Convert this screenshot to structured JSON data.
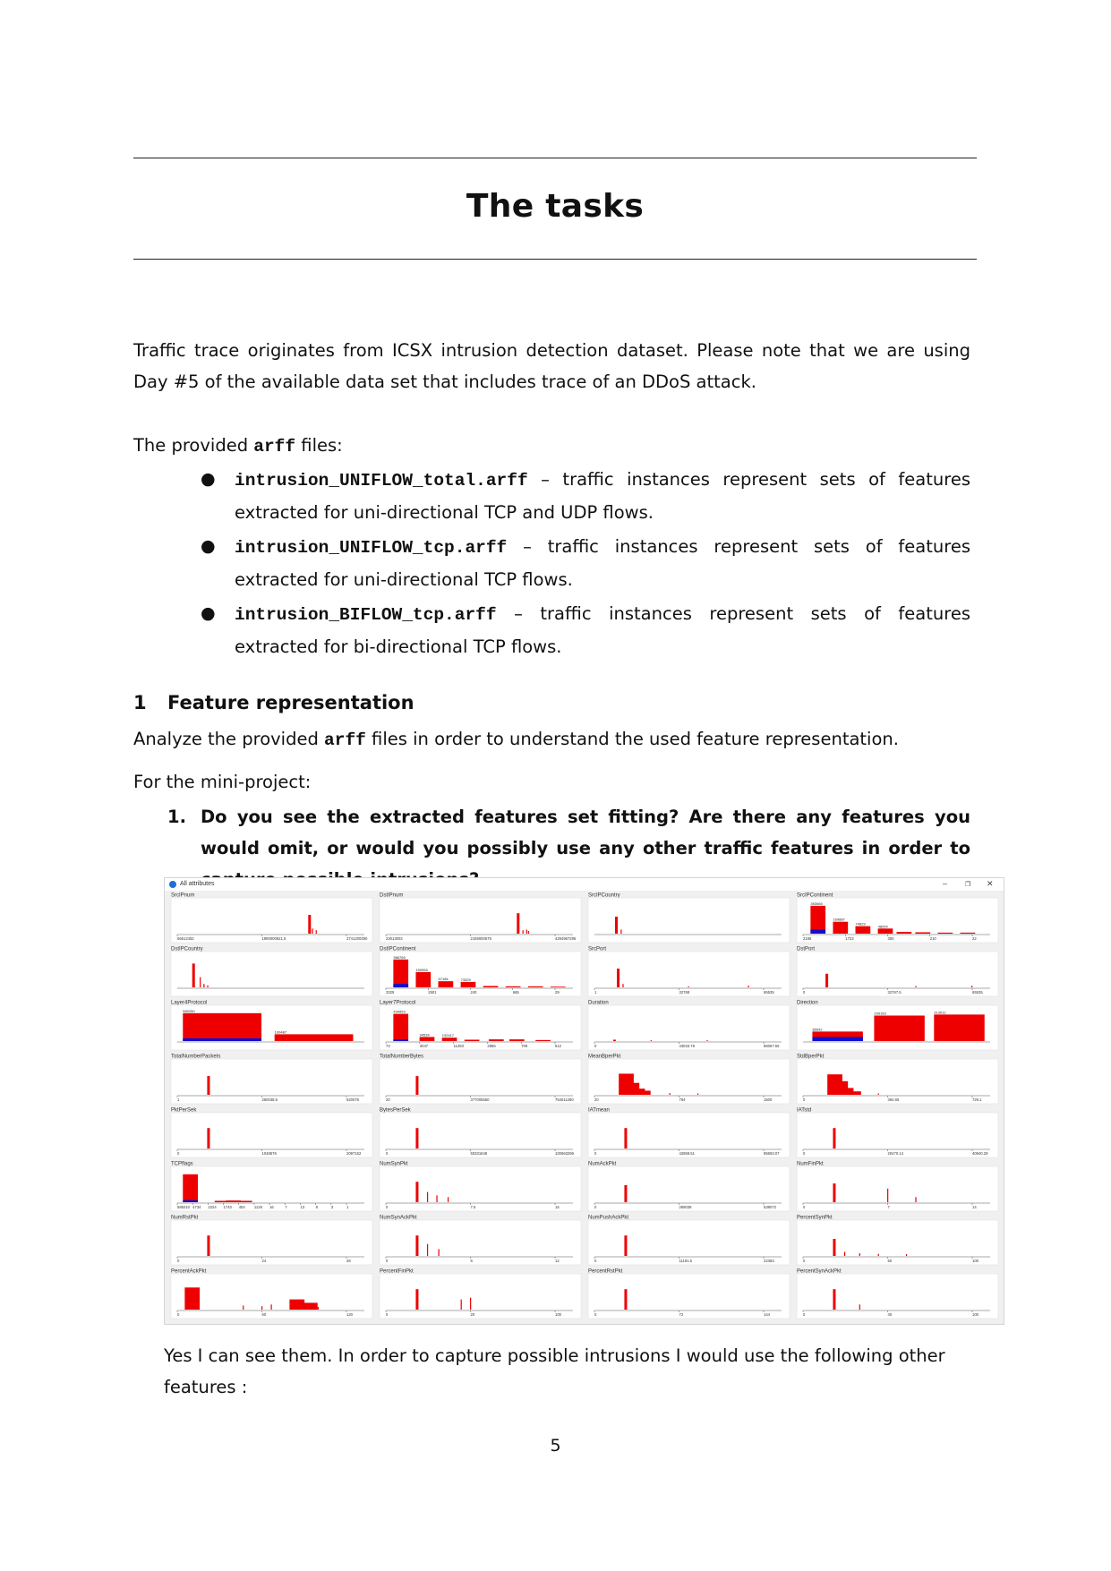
{
  "title": "The tasks",
  "intro": "Traffic trace originates from ICSX intrusion detection dataset. Please note that we are using Day #5 of the available data set that includes trace of an DDoS attack.",
  "provided": {
    "before": "The provided ",
    "code": "arff",
    "after": " files:"
  },
  "files": [
    {
      "name": "intrusion_UNIFLOW_total.arff",
      "desc": " – traffic instances represent sets of features extracted for uni-directional TCP and UDP flows."
    },
    {
      "name": "intrusion_UNIFLOW_tcp.arff",
      "desc": " – traffic instances represent sets of features extracted for uni-directional TCP flows."
    },
    {
      "name": "intrusion_BIFLOW_tcp.arff",
      "desc": " – traffic instances represent sets of features extracted for bi-directional TCP flows."
    }
  ],
  "section": {
    "number": "1",
    "title": "Feature representation"
  },
  "analyze": {
    "before": "Analyze the provided ",
    "code": "arff",
    "after": " files in order to understand the used feature representation."
  },
  "mini_project": "For the mini-project:",
  "question": {
    "number": "1.",
    "text": "Do you see the extracted features set fitting? Are there any features you would omit, or would you possibly use any other traffic features in order to capture possible intrusions?"
  },
  "screenshot": {
    "window_title": "All attributes",
    "colors": {
      "class_a": "#ee0000",
      "class_b": "#1010cc",
      "axis": "#555555",
      "panel_bg": "#ffffff"
    },
    "panels": [
      {
        "name": "SrcIPnum",
        "ticks": [
          "56612452",
          "1890000921.5",
          "3741200390"
        ],
        "bars": [
          [
            0.7,
            0.55
          ]
        ],
        "spikes": [
          [
            0.72,
            0.15
          ],
          [
            0.74,
            0.1
          ]
        ]
      },
      {
        "name": "DstIPnum",
        "ticks": [
          "23013003",
          "2159000679",
          "4294967295"
        ],
        "bars": [
          [
            0.7,
            0.6
          ]
        ],
        "spikes": [
          [
            0.73,
            0.1
          ],
          [
            0.75,
            0.12
          ],
          [
            0.76,
            0.08
          ]
        ]
      },
      {
        "name": "SrcIPCountry",
        "ticks": [],
        "bars": [
          [
            0.11,
            0.5
          ]
        ],
        "spikes": [
          [
            0.14,
            0.12
          ]
        ]
      },
      {
        "name": "SrcIPContinent",
        "ticks": [
          "2195",
          "1723",
          "350",
          "210",
          "22"
        ],
        "bars": [
          [
            0.04,
            0.82
          ],
          [
            0.16,
            0.35
          ],
          [
            0.28,
            0.22
          ],
          [
            0.4,
            0.15
          ],
          [
            0.5,
            0.05
          ],
          [
            0.6,
            0.04
          ],
          [
            0.72,
            0.03
          ],
          [
            0.84,
            0.03
          ]
        ],
        "counts": [
          "393065",
          "169887",
          "74623",
          "48254"
        ],
        "blue": 0.12
      },
      {
        "name": "DstIPCountry",
        "ticks": [],
        "bars": [
          [
            0.08,
            0.7
          ]
        ],
        "spikes": [
          [
            0.12,
            0.3
          ],
          [
            0.14,
            0.1
          ],
          [
            0.16,
            0.06
          ]
        ]
      },
      {
        "name": "DstIPContinent",
        "ticks": [
          "3325",
          "2501",
          "240",
          "665",
          "29"
        ],
        "bars": [
          [
            0.04,
            0.82
          ],
          [
            0.16,
            0.45
          ],
          [
            0.28,
            0.18
          ],
          [
            0.4,
            0.16
          ],
          [
            0.52,
            0.04
          ],
          [
            0.64,
            0.03
          ],
          [
            0.76,
            0.03
          ],
          [
            0.88,
            0.02
          ]
        ],
        "counts": [
          "366769",
          "159953",
          "57184",
          "73325"
        ],
        "blue": 0.1
      },
      {
        "name": "SrcPort",
        "ticks": [
          "1",
          "32768",
          "65535"
        ],
        "bars": [
          [
            0.12,
            0.55
          ]
        ],
        "spikes": [
          [
            0.15,
            0.1
          ],
          [
            0.5,
            0.03
          ],
          [
            0.82,
            0.05
          ]
        ]
      },
      {
        "name": "DstPort",
        "ticks": [
          "0",
          "32767.5",
          "65535"
        ],
        "bars": [
          [
            0.12,
            0.4
          ]
        ],
        "spikes": [
          [
            0.6,
            0.04
          ],
          [
            0.9,
            0.05
          ]
        ]
      },
      {
        "name": "Layer4Protocol",
        "ticks": [],
        "bars": [
          [
            0.03,
            0.82,
            0.42
          ],
          [
            0.52,
            0.2,
            0.42
          ]
        ],
        "counts": [
          "580250",
          "100487"
        ],
        "blue": 0.08
      },
      {
        "name": "Layer7Protocol",
        "ticks": [
          "73",
          "3047",
          "11283",
          "2856",
          "709",
          "512"
        ],
        "bars": [
          [
            0.04,
            0.8
          ],
          [
            0.18,
            0.12
          ],
          [
            0.3,
            0.1
          ],
          [
            0.42,
            0.04
          ],
          [
            0.55,
            0.05
          ],
          [
            0.66,
            0.05
          ],
          [
            0.8,
            0.03
          ]
        ],
        "counts": [
          "434953",
          "94534",
          "132417"
        ],
        "blue": 0.05
      },
      {
        "name": "Duration",
        "ticks": [
          "0",
          "43033.78",
          "86067.55"
        ],
        "bars": [
          [
            0.1,
            0.04
          ]
        ],
        "spikes": [
          [
            0.3,
            0.03
          ],
          [
            0.6,
            0.03
          ]
        ]
      },
      {
        "name": "Direction",
        "ticks": [],
        "bars": [
          [
            0.05,
            0.28,
            0.27
          ],
          [
            0.38,
            0.75,
            0.27
          ],
          [
            0.7,
            0.78,
            0.27
          ]
        ],
        "counts": [
          "85542",
          "299153",
          "313012"
        ],
        "blue": 0.12
      },
      {
        "name": "TotalNumberPackets",
        "ticks": [
          "1",
          "260038.5",
          "520076"
        ],
        "bars": [
          [
            0.16,
            0.55
          ]
        ],
        "spikes": []
      },
      {
        "name": "TotalNumberBytes",
        "ticks": [
          "20",
          "377005550",
          "754011280"
        ],
        "bars": [
          [
            0.16,
            0.55
          ]
        ],
        "spikes": []
      },
      {
        "name": "MeanBperPkt",
        "ticks": [
          "20",
          "764",
          "1500"
        ],
        "bars": [
          [
            0.13,
            0.62
          ],
          [
            0.16,
            0.35
          ],
          [
            0.19,
            0.18
          ],
          [
            0.22,
            0.12
          ]
        ],
        "spikes": [
          [
            0.4,
            0.05
          ],
          [
            0.55,
            0.04
          ]
        ]
      },
      {
        "name": "StdBperPkt",
        "ticks": [
          "0",
          "364.65",
          "729.1"
        ],
        "bars": [
          [
            0.13,
            0.6
          ],
          [
            0.16,
            0.4
          ],
          [
            0.19,
            0.2
          ],
          [
            0.23,
            0.1
          ]
        ],
        "spikes": [
          [
            0.4,
            0.04
          ]
        ]
      },
      {
        "name": "PktPerSek",
        "ticks": [
          "0",
          "1048576",
          "2097152"
        ],
        "bars": [
          [
            0.16,
            0.6
          ]
        ],
        "spikes": []
      },
      {
        "name": "BytesPerSek",
        "ticks": [
          "0",
          "50331648",
          "100663296"
        ],
        "bars": [
          [
            0.16,
            0.6
          ]
        ],
        "spikes": []
      },
      {
        "name": "IATmean",
        "ticks": [
          "0",
          "42859.51",
          "85693.07"
        ],
        "bars": [
          [
            0.16,
            0.6
          ]
        ],
        "spikes": []
      },
      {
        "name": "IATstd",
        "ticks": [
          "0",
          "20470.14",
          "40940.29"
        ],
        "bars": [
          [
            0.16,
            0.6
          ]
        ],
        "spikes": []
      },
      {
        "name": "TCPflags",
        "ticks": [
          "588210",
          "4734",
          "2224",
          "1743",
          "404",
          "1126",
          "16",
          "7",
          "13",
          "8",
          "3",
          "1"
        ],
        "bars": [
          [
            0.03,
            0.82
          ],
          [
            0.2,
            0.04
          ],
          [
            0.26,
            0.05
          ],
          [
            0.32,
            0.04
          ]
        ],
        "blue": 0.06
      },
      {
        "name": "NumSynPkt",
        "ticks": [
          "0",
          "7.5",
          "15"
        ],
        "bars": [
          [
            0.16,
            0.6
          ]
        ],
        "spikes": [
          [
            0.22,
            0.3
          ],
          [
            0.27,
            0.2
          ],
          [
            0.33,
            0.15
          ]
        ]
      },
      {
        "name": "NumAckPkt",
        "ticks": [
          "0",
          "269036",
          "538072"
        ],
        "bars": [
          [
            0.16,
            0.5
          ]
        ],
        "spikes": []
      },
      {
        "name": "NumFinPkt",
        "ticks": [
          "0",
          "7",
          "14"
        ],
        "bars": [
          [
            0.16,
            0.55
          ]
        ],
        "spikes": [
          [
            0.45,
            0.4
          ],
          [
            0.6,
            0.15
          ]
        ]
      },
      {
        "name": "NumRstPkt",
        "ticks": [
          "0",
          "24",
          "48"
        ],
        "bars": [
          [
            0.16,
            0.6
          ]
        ],
        "spikes": []
      },
      {
        "name": "NumSynAckPkt",
        "ticks": [
          "0",
          "6",
          "12"
        ],
        "bars": [
          [
            0.16,
            0.6
          ]
        ],
        "spikes": [
          [
            0.22,
            0.35
          ],
          [
            0.28,
            0.2
          ]
        ]
      },
      {
        "name": "NumPushAckPkt",
        "ticks": [
          "0",
          "11191.5",
          "22383"
        ],
        "bars": [
          [
            0.16,
            0.6
          ]
        ],
        "spikes": []
      },
      {
        "name": "PercentSynPkt",
        "ticks": [
          "0",
          "50",
          "100"
        ],
        "bars": [
          [
            0.16,
            0.5
          ]
        ],
        "spikes": [
          [
            0.22,
            0.12
          ],
          [
            0.3,
            0.08
          ],
          [
            0.4,
            0.06
          ],
          [
            0.55,
            0.05
          ]
        ]
      },
      {
        "name": "PercentAckPkt",
        "ticks": [
          "0",
          "60",
          "120"
        ],
        "bars": [
          [
            0.04,
            0.65
          ],
          [
            0.6,
            0.3
          ],
          [
            0.67,
            0.2
          ]
        ],
        "spikes": [
          [
            0.35,
            0.12
          ],
          [
            0.45,
            0.1
          ],
          [
            0.5,
            0.15
          ],
          [
            0.75,
            0.08
          ]
        ]
      },
      {
        "name": "PercentFinPkt",
        "ticks": [
          "0",
          "20",
          "100"
        ],
        "bars": [
          [
            0.16,
            0.6
          ]
        ],
        "spikes": [
          [
            0.4,
            0.3
          ],
          [
            0.45,
            0.35
          ]
        ]
      },
      {
        "name": "PercentRstPkt",
        "ticks": [
          "0",
          "72",
          "144"
        ],
        "bars": [
          [
            0.16,
            0.6
          ]
        ],
        "spikes": []
      },
      {
        "name": "PercentSynAckPkt",
        "ticks": [
          "0",
          "40",
          "100"
        ],
        "bars": [
          [
            0.16,
            0.6
          ]
        ],
        "spikes": [
          [
            0.3,
            0.15
          ]
        ]
      }
    ]
  },
  "answer": "Yes I can see them. In order to capture possible intrusions I would use the following other features :",
  "page_number": "5"
}
